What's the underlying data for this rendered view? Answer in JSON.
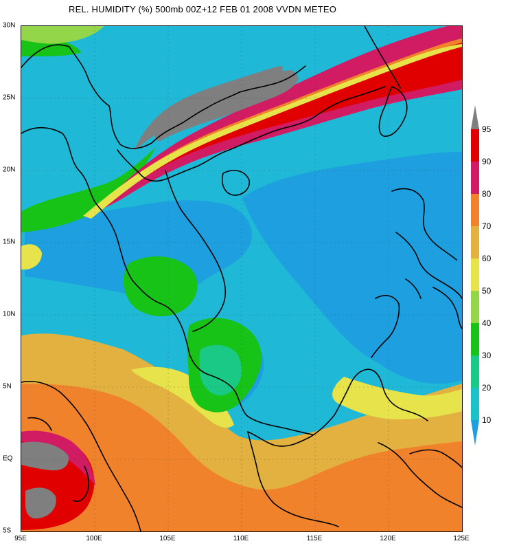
{
  "title": "REL. HUMIDITY (%) 500mb 00Z+12 FEB 01 2008 VVDN METEO",
  "axes": {
    "latitudes": [
      "30N",
      "25N",
      "20N",
      "15N",
      "10N",
      "5N",
      "EQ",
      "5S"
    ],
    "longitudes": [
      "95E",
      "100E",
      "105E",
      "110E",
      "115E",
      "120E",
      "125E"
    ]
  },
  "colorbar": {
    "labels": [
      "95",
      "90",
      "80",
      "70",
      "60",
      "50",
      "40",
      "30",
      "20",
      "10"
    ],
    "colors": [
      "#7f7f7f",
      "#e00000",
      "#d11b63",
      "#f0822c",
      "#e3b13f",
      "#e7e34a",
      "#93d64a",
      "#18c318",
      "#19c985",
      "#1bc3c8",
      "#1d9fe0"
    ]
  },
  "map_palette": {
    "gray": "#7f7f7f",
    "red": "#e00000",
    "magenta": "#d11b63",
    "orange": "#f0822c",
    "amber": "#e3b13f",
    "yellow": "#e7e34a",
    "yellowgreen": "#93d64a",
    "green": "#18c318",
    "teal": "#19c985",
    "cyan": "#1fb9d7",
    "blue": "#1d9fe0"
  }
}
